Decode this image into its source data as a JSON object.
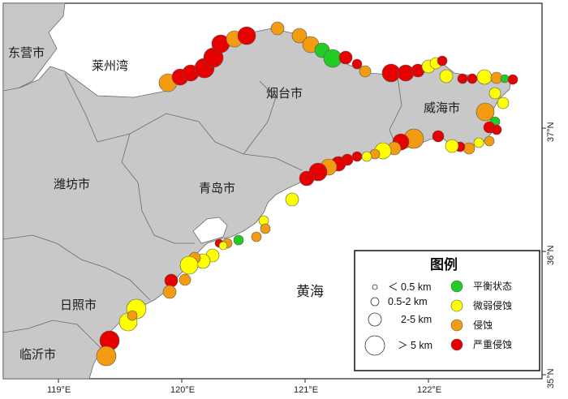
{
  "places": {
    "dongying": "东营市",
    "laizhou_bay": "莱州湾",
    "yantai": "烟台市",
    "weihai": "威海市",
    "weifang": "潍坊市",
    "qingdao": "青岛市",
    "rizhao": "日照市",
    "linyi": "临沂市",
    "yellow_sea": "黄海"
  },
  "axes": {
    "lon_labels": [
      "119°E",
      "120°E",
      "121°E",
      "122°E"
    ],
    "lat_labels": [
      "37°N",
      "36°N",
      "35°N"
    ]
  },
  "legend": {
    "title": "图例",
    "sizes": [
      {
        "label": "＜ 0.5 km"
      },
      {
        "label": "0.5-2 km"
      },
      {
        "label": "2-5 km"
      },
      {
        "label": "＞ 5 km"
      }
    ],
    "categories": [
      {
        "label": "平衡状态",
        "color": "#22cc22"
      },
      {
        "label": "微弱侵蚀",
        "color": "#ffff00"
      },
      {
        "label": "侵蚀",
        "color": "#f39c12"
      },
      {
        "label": "严重侵蚀",
        "color": "#e60000"
      }
    ]
  },
  "colors": {
    "land": "#c8c8c8",
    "sea": "#ffffff",
    "border": "#6a6a6a"
  }
}
